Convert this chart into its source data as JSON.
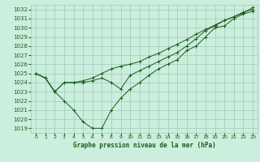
{
  "title": "Graphe pression niveau de la mer (hPa)",
  "background_color": "#cceedd",
  "grid_color": "#99ccbb",
  "line_color": "#1a5c1a",
  "marker": "+",
  "xlim": [
    -0.5,
    23.5
  ],
  "ylim": [
    1018.5,
    1032.5
  ],
  "xticks": [
    0,
    1,
    2,
    3,
    4,
    5,
    6,
    7,
    8,
    9,
    10,
    11,
    12,
    13,
    14,
    15,
    16,
    17,
    18,
    19,
    20,
    21,
    22,
    23
  ],
  "yticks": [
    1019,
    1020,
    1021,
    1022,
    1023,
    1024,
    1025,
    1026,
    1027,
    1028,
    1029,
    1030,
    1031,
    1032
  ],
  "curves": [
    [
      1025.0,
      1024.5,
      1023.0,
      1022.0,
      1021.0,
      1019.7,
      1019.0,
      1019.0,
      1021.0,
      1022.3,
      1023.3,
      1024.0,
      1024.8,
      1025.5,
      1026.0,
      1026.5,
      1027.5,
      1028.0,
      1029.0,
      1030.0,
      1030.2,
      1031.0,
      1031.5,
      1031.8
    ],
    [
      1025.0,
      1024.5,
      1023.0,
      1024.0,
      1024.0,
      1024.0,
      1024.2,
      1024.5,
      1024.0,
      1023.3,
      1024.8,
      1025.3,
      1025.8,
      1026.3,
      1026.8,
      1027.3,
      1028.0,
      1028.8,
      1029.7,
      1030.2,
      1030.8,
      1031.2,
      1031.7,
      1032.0
    ],
    [
      1025.0,
      1024.5,
      1023.0,
      1024.0,
      1024.0,
      1024.2,
      1024.5,
      1025.0,
      1025.5,
      1025.8,
      1026.0,
      1026.3,
      1026.8,
      1027.2,
      1027.7,
      1028.2,
      1028.7,
      1029.3,
      1029.8,
      1030.3,
      1030.8,
      1031.2,
      1031.6,
      1032.2
    ]
  ],
  "xlabel_fontsize": 5.5,
  "ytick_fontsize": 5.0,
  "xtick_fontsize": 4.5
}
